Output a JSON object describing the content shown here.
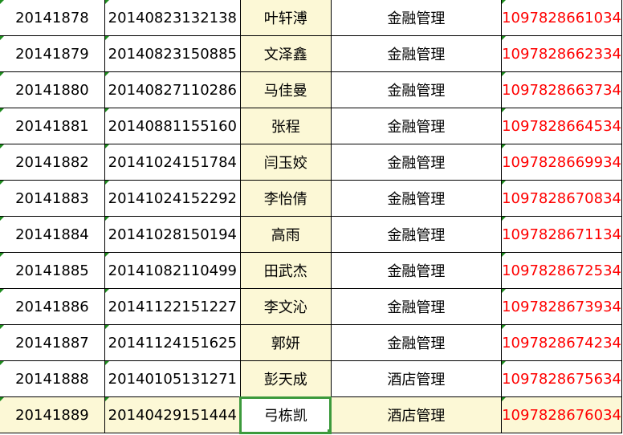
{
  "colors": {
    "name_column_bg": "#fcf8d6",
    "id_text": "#ff0000",
    "selection_border": "#3c9a3c"
  },
  "rows": [
    {
      "no": "20141878",
      "code": "20140823132138",
      "name": "叶轩溥",
      "major": "金融管理",
      "card": "1097828661034"
    },
    {
      "no": "20141879",
      "code": "20140823150885",
      "name": "文泽鑫",
      "major": "金融管理",
      "card": "1097828662334"
    },
    {
      "no": "20141880",
      "code": "20140827110286",
      "name": "马佳曼",
      "major": "金融管理",
      "card": "1097828663734"
    },
    {
      "no": "20141881",
      "code": "20140881155160",
      "name": "张程",
      "major": "金融管理",
      "card": "1097828664534"
    },
    {
      "no": "20141882",
      "code": "20141024151784",
      "name": "闫玉姣",
      "major": "金融管理",
      "card": "1097828669934"
    },
    {
      "no": "20141883",
      "code": "20141024152292",
      "name": "李怡倩",
      "major": "金融管理",
      "card": "1097828670834"
    },
    {
      "no": "20141884",
      "code": "20141028150194",
      "name": "高雨",
      "major": "金融管理",
      "card": "1097828671134"
    },
    {
      "no": "20141885",
      "code": "20141082110499",
      "name": "田武杰",
      "major": "金融管理",
      "card": "1097828672534"
    },
    {
      "no": "20141886",
      "code": "20141122151227",
      "name": "李文沁",
      "major": "金融管理",
      "card": "1097828673934"
    },
    {
      "no": "20141887",
      "code": "20141124151625",
      "name": "郭妍",
      "major": "金融管理",
      "card": "1097828674234"
    },
    {
      "no": "20141888",
      "code": "20140105131271",
      "name": "彭天成",
      "major": "酒店管理",
      "card": "1097828675634"
    },
    {
      "no": "20141889",
      "code": "20140429151444",
      "name": "弓栋凯",
      "major": "酒店管理",
      "card": "1097828676034"
    }
  ],
  "selected_row": 11
}
